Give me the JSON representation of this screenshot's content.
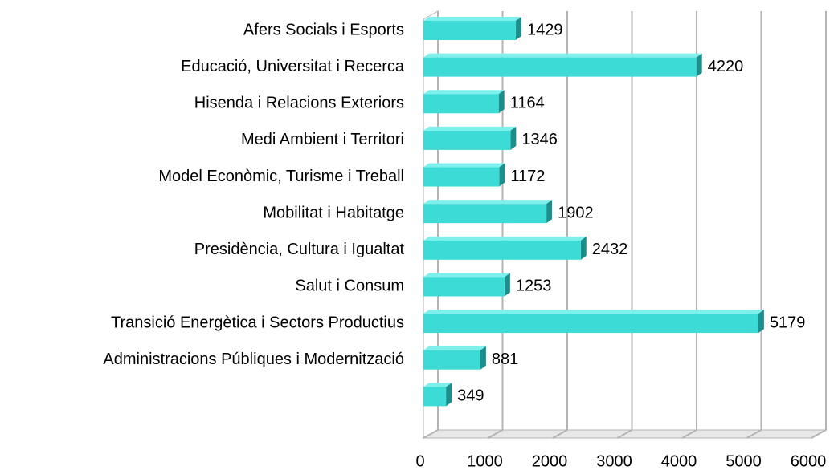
{
  "chart_data": {
    "type": "bar",
    "orientation": "horizontal",
    "categories": [
      "Afers Socials i Esports",
      "Educació, Universitat i Recerca",
      "Hisenda i Relacions Exteriors",
      "Medi Ambient i Territori",
      "Model Econòmic, Turisme i Treball",
      "Mobilitat i Habitatge",
      "Presidència, Cultura i Igualtat",
      "Salut i Consum",
      "Transició Energètica i Sectors Productius",
      "Administracions Públiques i Modernització",
      null
    ],
    "values": [
      1429,
      4220,
      1164,
      1346,
      1172,
      1902,
      2432,
      1253,
      5179,
      881,
      349
    ],
    "color": "#3ddbd6",
    "xlim": [
      0,
      6000
    ],
    "xticks": [
      0,
      1000,
      2000,
      3000,
      4000,
      5000,
      6000
    ],
    "grid": true
  }
}
